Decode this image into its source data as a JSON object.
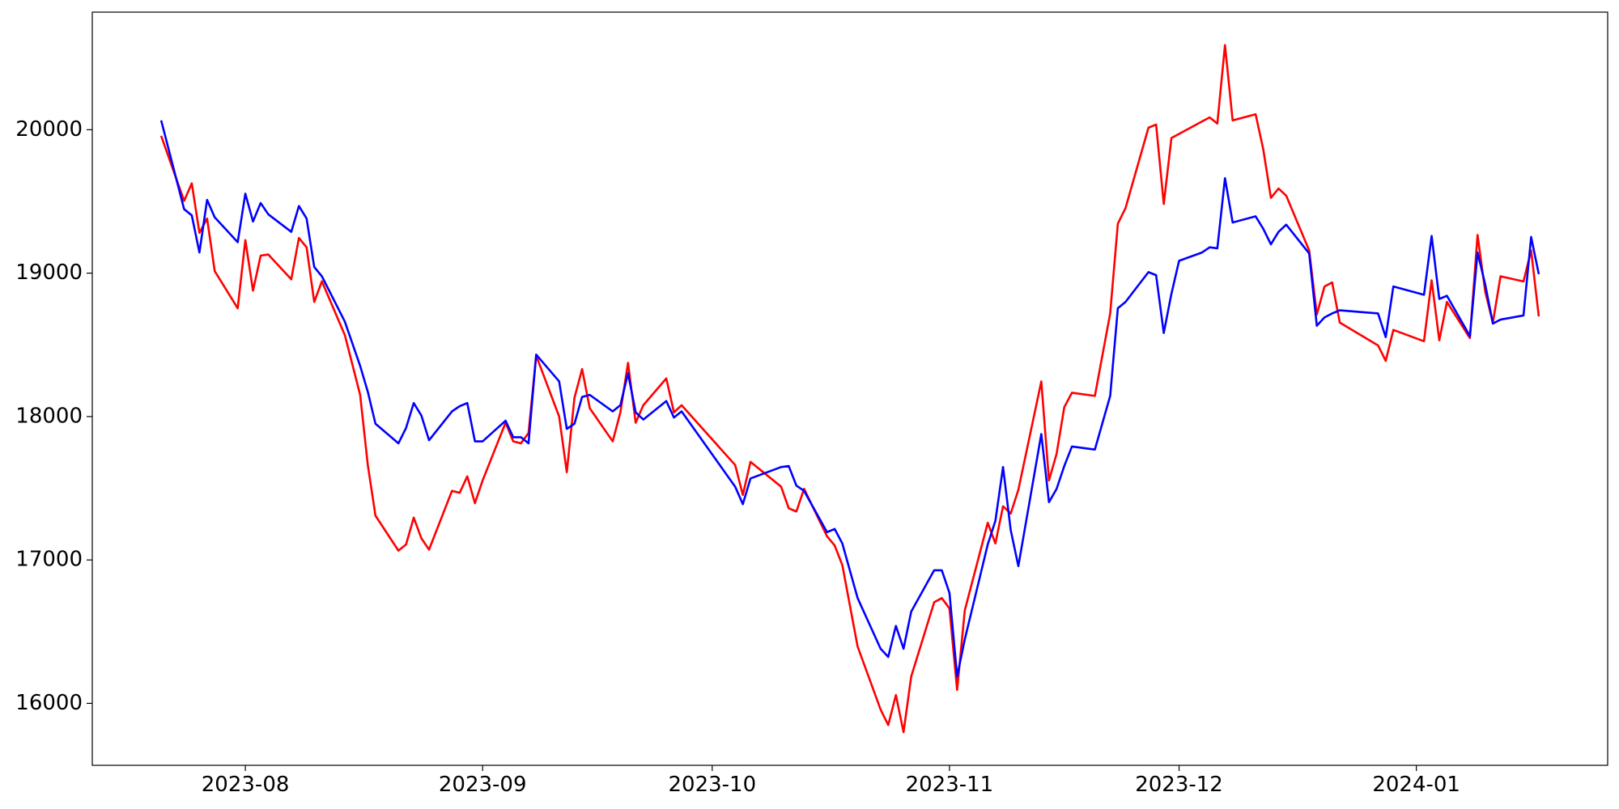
{
  "chart_data": {
    "type": "line",
    "x": [
      "2023-07-21",
      "2023-07-24",
      "2023-07-25",
      "2023-07-26",
      "2023-07-27",
      "2023-07-28",
      "2023-07-31",
      "2023-08-01",
      "2023-08-02",
      "2023-08-03",
      "2023-08-04",
      "2023-08-07",
      "2023-08-08",
      "2023-08-09",
      "2023-08-10",
      "2023-08-11",
      "2023-08-14",
      "2023-08-16",
      "2023-08-17",
      "2023-08-18",
      "2023-08-21",
      "2023-08-22",
      "2023-08-23",
      "2023-08-24",
      "2023-08-25",
      "2023-08-28",
      "2023-08-29",
      "2023-08-30",
      "2023-08-31",
      "2023-09-01",
      "2023-09-04",
      "2023-09-05",
      "2023-09-06",
      "2023-09-07",
      "2023-09-08",
      "2023-09-11",
      "2023-09-12",
      "2023-09-13",
      "2023-09-14",
      "2023-09-15",
      "2023-09-18",
      "2023-09-19",
      "2023-09-20",
      "2023-09-21",
      "2023-09-22",
      "2023-09-25",
      "2023-09-26",
      "2023-09-27",
      "2023-10-04",
      "2023-10-05",
      "2023-10-06",
      "2023-10-10",
      "2023-10-11",
      "2023-10-12",
      "2023-10-13",
      "2023-10-16",
      "2023-10-17",
      "2023-10-18",
      "2023-10-20",
      "2023-10-23",
      "2023-10-24",
      "2023-10-25",
      "2023-10-26",
      "2023-10-27",
      "2023-10-30",
      "2023-10-31",
      "2023-11-01",
      "2023-11-02",
      "2023-11-03",
      "2023-11-06",
      "2023-11-07",
      "2023-11-08",
      "2023-11-09",
      "2023-11-10",
      "2023-11-13",
      "2023-11-14",
      "2023-11-15",
      "2023-11-16",
      "2023-11-17",
      "2023-11-20",
      "2023-11-22",
      "2023-11-23",
      "2023-11-24",
      "2023-11-27",
      "2023-11-28",
      "2023-11-29",
      "2023-11-30",
      "2023-12-01",
      "2023-12-04",
      "2023-12-05",
      "2023-12-06",
      "2023-12-07",
      "2023-12-08",
      "2023-12-11",
      "2023-12-12",
      "2023-12-13",
      "2023-12-14",
      "2023-12-15",
      "2023-12-18",
      "2023-12-19",
      "2023-12-20",
      "2023-12-21",
      "2023-12-22",
      "2023-12-27",
      "2023-12-28",
      "2023-12-29",
      "2024-01-02",
      "2024-01-03",
      "2024-01-04",
      "2024-01-05",
      "2024-01-08",
      "2024-01-09",
      "2024-01-10",
      "2024-01-11",
      "2024-01-12",
      "2024-01-15",
      "2024-01-16",
      "2024-01-17"
    ],
    "series": [
      {
        "color": "#ff0000",
        "values": [
          19957,
          19504,
          19626,
          19281,
          19381,
          19014,
          18755,
          19230,
          18878,
          19122,
          19130,
          18957,
          19245,
          19180,
          18799,
          18943,
          18568,
          18151,
          17662,
          17309,
          17065,
          17108,
          17295,
          17151,
          17072,
          17482,
          17468,
          17583,
          17396,
          17554,
          17957,
          17827,
          17813,
          17885,
          18425,
          18000,
          17612,
          18130,
          18331,
          18058,
          17827,
          18029,
          18374,
          17957,
          18079,
          18266,
          18029,
          18079,
          17662,
          17453,
          17684,
          17511,
          17360,
          17338,
          17496,
          17165,
          17101,
          16964,
          16396,
          15957,
          15849,
          16058,
          15799,
          16187,
          16705,
          16734,
          16662,
          16094,
          16648,
          17259,
          17115,
          17374,
          17324,
          17489,
          18245,
          17554,
          17741,
          18065,
          18166,
          18144,
          18719,
          19345,
          19453,
          20014,
          20036,
          19482,
          19942,
          19971,
          20058,
          20086,
          20043,
          20590,
          20065,
          20108,
          19863,
          19525,
          19590,
          19540,
          19158,
          18712,
          18907,
          18935,
          18655,
          18496,
          18388,
          18604,
          18525,
          18950,
          18532,
          18799,
          18547,
          19266,
          18871,
          18655,
          18978,
          18942,
          19158,
          18698
        ]
      },
      {
        "color": "#0000ff",
        "values": [
          20065,
          19446,
          19403,
          19144,
          19511,
          19389,
          19216,
          19554,
          19360,
          19489,
          19410,
          19288,
          19468,
          19381,
          19043,
          18978,
          18662,
          18353,
          18173,
          17950,
          17813,
          17921,
          18094,
          18007,
          17835,
          18036,
          18072,
          18094,
          17827,
          17827,
          17971,
          17856,
          17856,
          17813,
          18432,
          18245,
          17914,
          17950,
          18137,
          18151,
          18036,
          18079,
          18302,
          18029,
          17979,
          18108,
          17993,
          18036,
          17511,
          17389,
          17568,
          17648,
          17655,
          17518,
          17482,
          17194,
          17216,
          17115,
          16734,
          16381,
          16324,
          16540,
          16381,
          16640,
          16928,
          16928,
          16770,
          16187,
          16446,
          17108,
          17273,
          17648,
          17209,
          16957,
          17878,
          17403,
          17496,
          17655,
          17791,
          17770,
          18144,
          18755,
          18799,
          19007,
          18986,
          18583,
          18856,
          19086,
          19144,
          19180,
          19173,
          19662,
          19353,
          19396,
          19309,
          19201,
          19288,
          19338,
          19137,
          18633,
          18691,
          18719,
          18741,
          18719,
          18554,
          18907,
          18849,
          19259,
          18820,
          18842,
          18561,
          19144,
          18921,
          18648,
          18676,
          18705,
          19252,
          18993
        ]
      }
    ],
    "xlim": [
      "2023-07-12",
      "2024-01-26"
    ],
    "xticks": [
      {
        "value": "2023-08-01",
        "label": "2023-08"
      },
      {
        "value": "2023-09-01",
        "label": "2023-09"
      },
      {
        "value": "2023-10-01",
        "label": "2023-10"
      },
      {
        "value": "2023-11-01",
        "label": "2023-11"
      },
      {
        "value": "2023-12-01",
        "label": "2023-12"
      },
      {
        "value": "2024-01-01",
        "label": "2024-01"
      }
    ],
    "ylim": [
      15568,
      20820
    ],
    "yticks": [
      16000,
      17000,
      18000,
      19000,
      20000
    ],
    "grid": false
  }
}
